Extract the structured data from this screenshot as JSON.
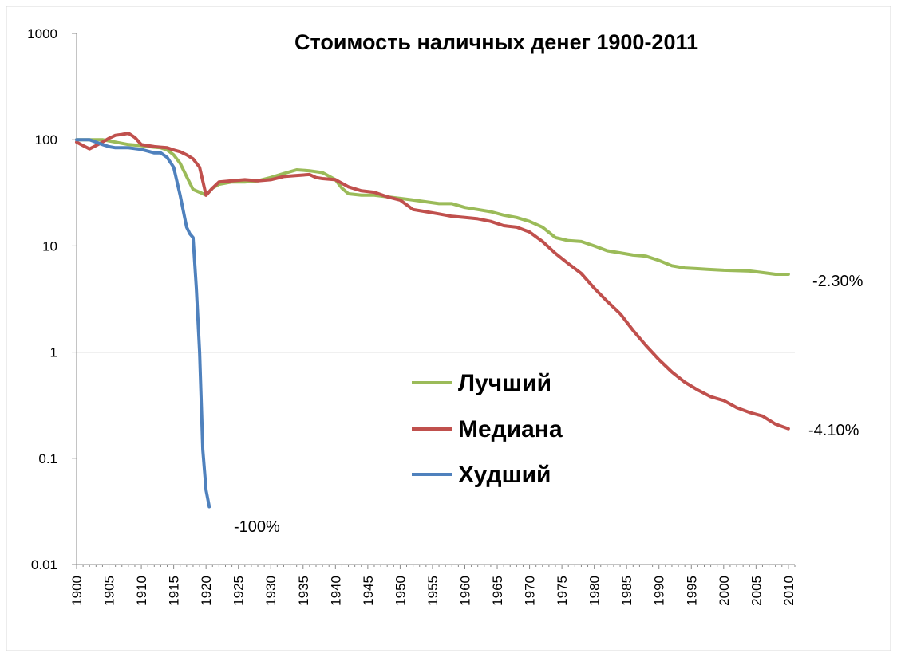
{
  "chart_data": {
    "type": "line",
    "title": "Стоимость наличных денег 1900-2011",
    "xlabel": "",
    "ylabel": "",
    "yscale": "log",
    "ylim": [
      0.01,
      1000
    ],
    "xlim": [
      1900,
      2011
    ],
    "y_ticks": [
      "1000",
      "100",
      "10",
      "1",
      "0.1",
      "0.01"
    ],
    "y_tick_values": [
      1000,
      100,
      10,
      1,
      0.1,
      0.01
    ],
    "x_ticks": [
      "1900",
      "1905",
      "1910",
      "1915",
      "1920",
      "1925",
      "1930",
      "1935",
      "1940",
      "1945",
      "1950",
      "1955",
      "1960",
      "1965",
      "1970",
      "1975",
      "1980",
      "1985",
      "1990",
      "1995",
      "2000",
      "2005",
      "2010"
    ],
    "x_tick_values": [
      1900,
      1905,
      1910,
      1915,
      1920,
      1925,
      1930,
      1935,
      1940,
      1945,
      1950,
      1955,
      1960,
      1965,
      1970,
      1975,
      1980,
      1985,
      1990,
      1995,
      2000,
      2005,
      2010
    ],
    "reference_line": 1,
    "grid": false,
    "legend_position": "center-right",
    "series": [
      {
        "name": "Лучший",
        "color": "#9BBB59",
        "end_label": "-2.30%",
        "points": [
          [
            1900,
            100
          ],
          [
            1902,
            100
          ],
          [
            1904,
            100
          ],
          [
            1906,
            95
          ],
          [
            1908,
            90
          ],
          [
            1910,
            88
          ],
          [
            1912,
            85
          ],
          [
            1913,
            84
          ],
          [
            1914,
            80
          ],
          [
            1915,
            72
          ],
          [
            1916,
            60
          ],
          [
            1917,
            45
          ],
          [
            1918,
            34
          ],
          [
            1919,
            32
          ],
          [
            1920,
            30
          ],
          [
            1921,
            35
          ],
          [
            1922,
            38
          ],
          [
            1924,
            40
          ],
          [
            1926,
            40
          ],
          [
            1928,
            41
          ],
          [
            1930,
            44
          ],
          [
            1932,
            48
          ],
          [
            1934,
            52
          ],
          [
            1936,
            51
          ],
          [
            1938,
            49
          ],
          [
            1940,
            42
          ],
          [
            1941,
            35
          ],
          [
            1942,
            31
          ],
          [
            1944,
            30
          ],
          [
            1946,
            30
          ],
          [
            1948,
            29
          ],
          [
            1950,
            28
          ],
          [
            1952,
            27
          ],
          [
            1954,
            26
          ],
          [
            1956,
            25
          ],
          [
            1958,
            25
          ],
          [
            1960,
            23
          ],
          [
            1962,
            22
          ],
          [
            1964,
            21
          ],
          [
            1966,
            19.5
          ],
          [
            1968,
            18.5
          ],
          [
            1970,
            17
          ],
          [
            1972,
            15
          ],
          [
            1974,
            12
          ],
          [
            1976,
            11.2
          ],
          [
            1978,
            11
          ],
          [
            1980,
            10
          ],
          [
            1982,
            9
          ],
          [
            1984,
            8.6
          ],
          [
            1986,
            8.2
          ],
          [
            1988,
            8
          ],
          [
            1990,
            7.3
          ],
          [
            1992,
            6.5
          ],
          [
            1994,
            6.2
          ],
          [
            1996,
            6.1
          ],
          [
            1998,
            6
          ],
          [
            2000,
            5.9
          ],
          [
            2002,
            5.85
          ],
          [
            2004,
            5.8
          ],
          [
            2006,
            5.6
          ],
          [
            2008,
            5.4
          ],
          [
            2010,
            5.4
          ]
        ]
      },
      {
        "name": "Медиана",
        "color": "#C0504D",
        "end_label": "-4.10%",
        "points": [
          [
            1900,
            95
          ],
          [
            1901,
            88
          ],
          [
            1902,
            82
          ],
          [
            1903,
            88
          ],
          [
            1904,
            95
          ],
          [
            1905,
            103
          ],
          [
            1906,
            110
          ],
          [
            1907,
            112
          ],
          [
            1908,
            115
          ],
          [
            1909,
            105
          ],
          [
            1910,
            90
          ],
          [
            1911,
            88
          ],
          [
            1912,
            86
          ],
          [
            1913,
            85
          ],
          [
            1914,
            84
          ],
          [
            1915,
            80
          ],
          [
            1916,
            77
          ],
          [
            1917,
            72
          ],
          [
            1918,
            66
          ],
          [
            1919,
            55
          ],
          [
            1920,
            30
          ],
          [
            1921,
            35
          ],
          [
            1922,
            40
          ],
          [
            1924,
            41
          ],
          [
            1926,
            42
          ],
          [
            1928,
            41
          ],
          [
            1930,
            42
          ],
          [
            1932,
            45
          ],
          [
            1934,
            46
          ],
          [
            1936,
            47
          ],
          [
            1937,
            44
          ],
          [
            1938,
            43
          ],
          [
            1940,
            42
          ],
          [
            1942,
            36
          ],
          [
            1944,
            33
          ],
          [
            1946,
            32
          ],
          [
            1948,
            29
          ],
          [
            1950,
            27
          ],
          [
            1952,
            22
          ],
          [
            1954,
            21
          ],
          [
            1956,
            20
          ],
          [
            1958,
            19
          ],
          [
            1960,
            18.5
          ],
          [
            1962,
            18
          ],
          [
            1964,
            17
          ],
          [
            1966,
            15.5
          ],
          [
            1968,
            15
          ],
          [
            1970,
            13.5
          ],
          [
            1972,
            11
          ],
          [
            1974,
            8.5
          ],
          [
            1976,
            6.8
          ],
          [
            1978,
            5.5
          ],
          [
            1980,
            4
          ],
          [
            1982,
            3
          ],
          [
            1984,
            2.3
          ],
          [
            1986,
            1.6
          ],
          [
            1988,
            1.15
          ],
          [
            1990,
            0.85
          ],
          [
            1992,
            0.65
          ],
          [
            1994,
            0.52
          ],
          [
            1996,
            0.44
          ],
          [
            1998,
            0.38
          ],
          [
            2000,
            0.35
          ],
          [
            2002,
            0.3
          ],
          [
            2004,
            0.27
          ],
          [
            2006,
            0.25
          ],
          [
            2008,
            0.21
          ],
          [
            2010,
            0.19
          ]
        ]
      },
      {
        "name": "Худший",
        "color": "#4F81BD",
        "end_label": "-100%",
        "points": [
          [
            1900,
            100
          ],
          [
            1902,
            100
          ],
          [
            1903,
            95
          ],
          [
            1904,
            90
          ],
          [
            1905,
            86
          ],
          [
            1906,
            84
          ],
          [
            1908,
            84
          ],
          [
            1910,
            81
          ],
          [
            1911,
            78
          ],
          [
            1912,
            75
          ],
          [
            1913,
            75
          ],
          [
            1914,
            68
          ],
          [
            1915,
            55
          ],
          [
            1916,
            30
          ],
          [
            1917,
            15
          ],
          [
            1917.5,
            13
          ],
          [
            1918,
            12
          ],
          [
            1918.5,
            4
          ],
          [
            1919,
            1
          ],
          [
            1919.5,
            0.12
          ],
          [
            1920,
            0.05
          ],
          [
            1920.5,
            0.035
          ]
        ]
      }
    ]
  }
}
